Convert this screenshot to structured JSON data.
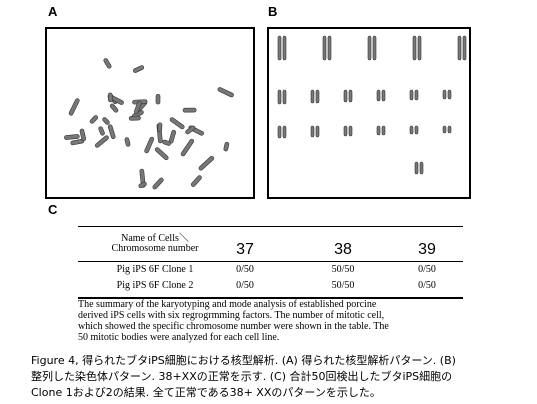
{
  "panels": {
    "a": "A",
    "b": "B",
    "c": "C"
  },
  "table": {
    "header": {
      "name": "Name of Cells＼",
      "sub": "Chromosome number",
      "columns": [
        "37",
        "38",
        "39"
      ]
    },
    "rows": [
      [
        "Pig iPS 6F Clone 1",
        "0/50",
        "50/50",
        "0/50"
      ],
      [
        "Pig iPS 6F Clone 2",
        "0/50",
        "50/50",
        "0/50"
      ]
    ]
  },
  "note": [
    "The summary of the karyotyping and mode analysis of established porcine",
    "derived iPS cells with six regrogrmming factors.  The number of mitotic cell,",
    "which showed the specific chromosome number were shown in the table.  The",
    "50 mitotic bodies were analyzed for each cell line."
  ],
  "caption": [
    "Figure 4, 得られたブタiPS細胞における核型解析. (A) 得られた核型解析パターン. (B)",
    "整列した染色体パターン. 38+XXの正常を示す. (C) 合計50回検出したブタiPS細胞の",
    "Clone 1および2の結果. 全て正常である38+ XXのパターンを示した。"
  ]
}
